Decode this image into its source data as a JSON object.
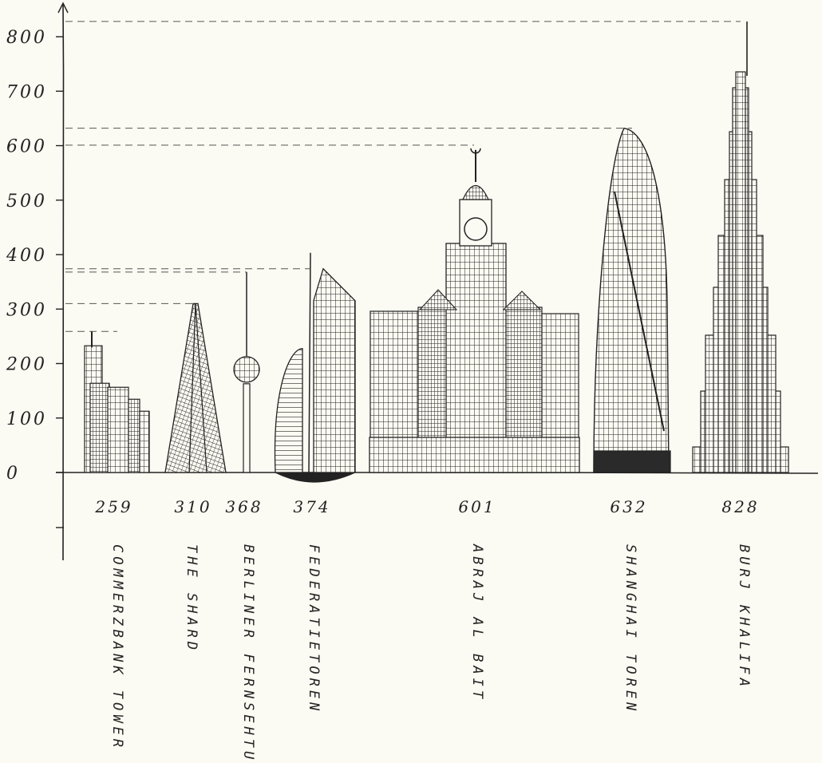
{
  "chart_data": {
    "type": "bar",
    "title": "",
    "xlabel": "",
    "ylabel": "",
    "ylim": [
      0,
      800
    ],
    "yticks": [
      "800",
      "700",
      "600",
      "500",
      "400",
      "300",
      "200",
      "100",
      "0"
    ],
    "categories": [
      "COMMERZBANK TOWER",
      "THE SHARD",
      "BERLINER FERNSEHTURM",
      "FEDERATIETOREN",
      "ABRAJ AL BAIT",
      "SHANGHAI TOREN",
      "BURJ KHALIFA"
    ],
    "value_labels": [
      "259",
      "310",
      "368",
      "374",
      "601",
      "632",
      "828"
    ],
    "values": [
      259,
      310,
      368,
      374,
      601,
      632,
      828
    ],
    "bar_style": "hand-drawn building illustrations",
    "grid": false,
    "colors": {
      "background": "#fcfbf3",
      "ink": "#222222"
    }
  }
}
